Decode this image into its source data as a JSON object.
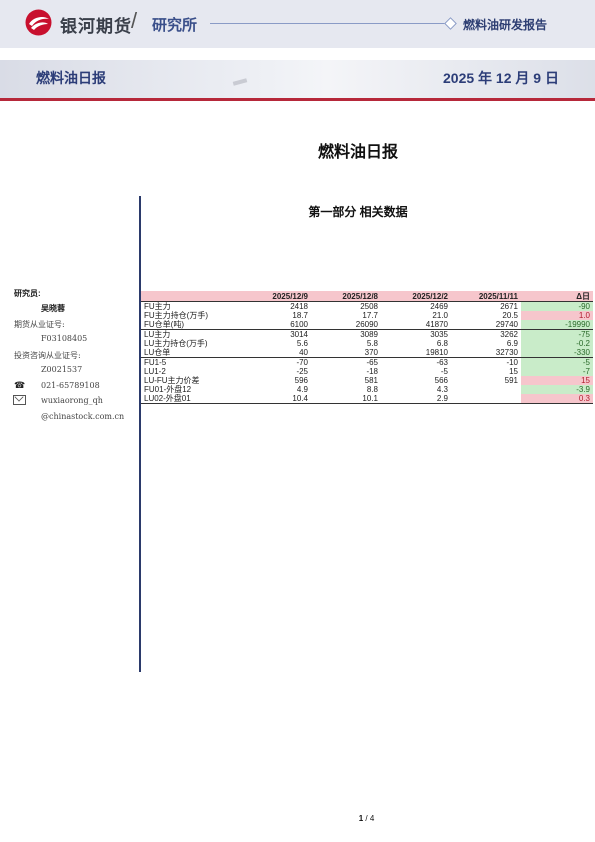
{
  "header": {
    "brand": "银河期货",
    "slash": "/",
    "institute": "研究所",
    "report_type": "燃料油研发报告"
  },
  "banner": {
    "title": "燃料油日报",
    "date": "2025 年 12 月 9 日"
  },
  "doc_title": "燃料油日报",
  "section_title": "第一部分 相关数据",
  "sidebar": {
    "researcher_label": "研究员:",
    "researcher_name": "吴晓蓉",
    "futures_cert_label": "期货从业证号:",
    "futures_cert": "F03108405",
    "consult_cert_label": "投资咨询从业证号:",
    "consult_cert": "Z0021537",
    "phone": "021-65789108",
    "email_line1": "wuxiaorong_qh",
    "email_line2": "@chinastock.com.cn"
  },
  "table": {
    "headers": [
      "",
      "2025/12/9",
      "2025/12/8",
      "2025/12/2",
      "2025/11/11",
      "Δ日"
    ],
    "rows": [
      {
        "name": "FU主力",
        "v": [
          "2418",
          "2508",
          "2469",
          "2671"
        ],
        "delta": "-90",
        "sign": "neg"
      },
      {
        "name": "FU主力持仓(万手)",
        "v": [
          "18.7",
          "17.7",
          "21.0",
          "20.5"
        ],
        "delta": "1.0",
        "sign": "pos"
      },
      {
        "name": "FU仓单(吨)",
        "v": [
          "6100",
          "26090",
          "41870",
          "29740"
        ],
        "delta": "-19990",
        "sign": "neg",
        "end": true
      },
      {
        "name": "LU主力",
        "v": [
          "3014",
          "3089",
          "3035",
          "3262"
        ],
        "delta": "-75",
        "sign": "neg"
      },
      {
        "name": "LU主力持仓(万手)",
        "v": [
          "5.6",
          "5.8",
          "6.8",
          "6.9"
        ],
        "delta": "-0.2",
        "sign": "neg"
      },
      {
        "name": "LU仓单",
        "v": [
          "40",
          "370",
          "19810",
          "32730"
        ],
        "delta": "-330",
        "sign": "neg",
        "end": true
      },
      {
        "name": "FU1-5",
        "v": [
          "-70",
          "-65",
          "-63",
          "-10"
        ],
        "delta": "-5",
        "sign": "neg"
      },
      {
        "name": "LU1-2",
        "v": [
          "-25",
          "-18",
          "-5",
          "15"
        ],
        "delta": "-7",
        "sign": "neg"
      },
      {
        "name": "LU-FU主力价差",
        "v": [
          "596",
          "581",
          "566",
          "591"
        ],
        "delta": "15",
        "sign": "pos"
      },
      {
        "name": "FU01-外盘12",
        "v": [
          "4.9",
          "8.8",
          "4.3",
          ""
        ],
        "delta": "-3.9",
        "sign": "neg"
      },
      {
        "name": "LU02-外盘01",
        "v": [
          "10.4",
          "10.1",
          "2.9",
          ""
        ],
        "delta": "0.3",
        "sign": "pos",
        "end": true
      }
    ]
  },
  "footer": {
    "page_current": "1",
    "page_sep": "/",
    "page_total": "4"
  }
}
